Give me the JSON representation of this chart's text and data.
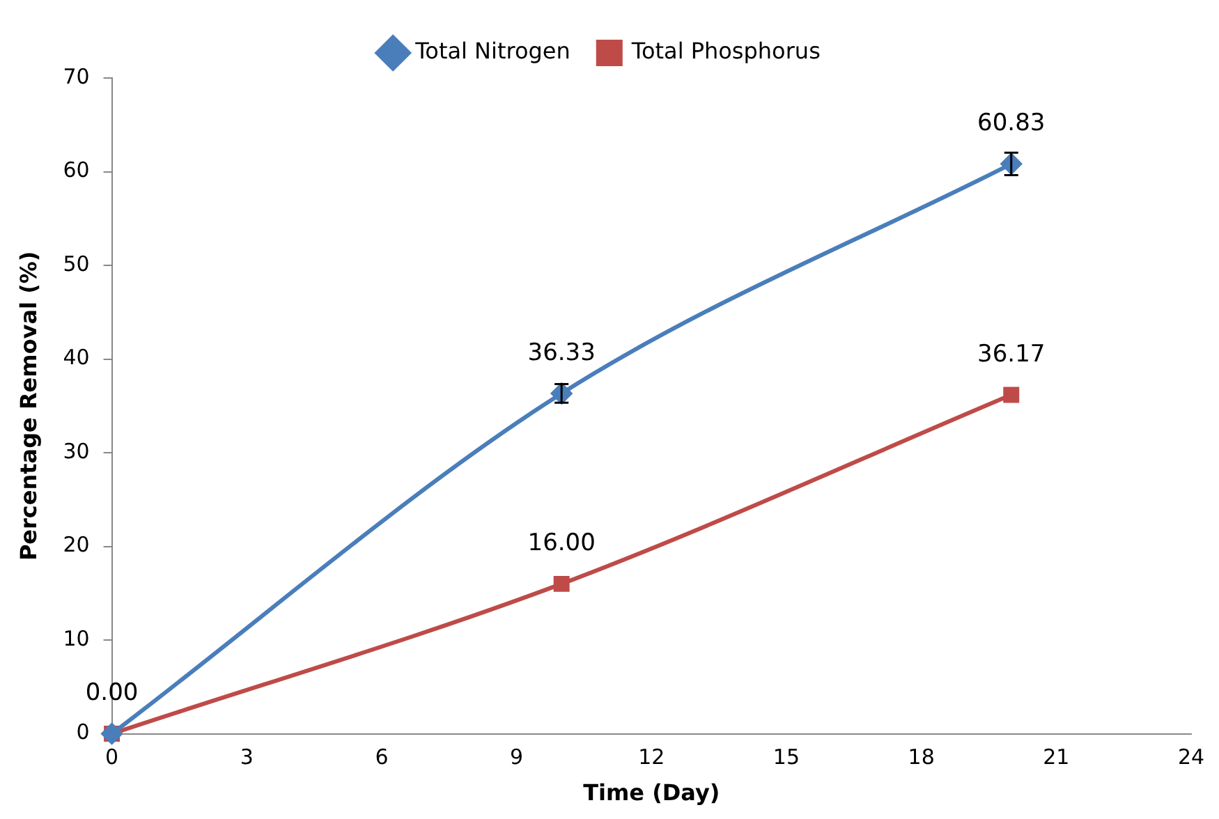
{
  "chart_data": {
    "type": "line",
    "xlabel": "Time (Day)",
    "ylabel": "Percentage Removal (%)",
    "x": [
      0,
      10,
      20
    ],
    "series": [
      {
        "name": "Total Nitrogen",
        "color": "#4a7ebb",
        "marker": "diamond",
        "values": [
          0,
          36.33,
          60.83
        ],
        "errors": [
          null,
          1,
          1.2
        ],
        "value_labels": [
          null,
          "36.33",
          "60.83"
        ]
      },
      {
        "name": "Total Phosphorus",
        "color": "#be4b48",
        "marker": "square",
        "values": [
          0,
          16.0,
          36.17
        ],
        "value_labels": [
          "0.00",
          "16.00",
          "36.17"
        ]
      }
    ],
    "xlim": [
      0,
      24
    ],
    "xticks": [
      0,
      3,
      6,
      9,
      12,
      15,
      18,
      21,
      24
    ],
    "ylim": [
      0,
      70
    ],
    "yticks": [
      0,
      10,
      20,
      30,
      40,
      50,
      60,
      70
    ],
    "grid": false,
    "legend": "top"
  }
}
